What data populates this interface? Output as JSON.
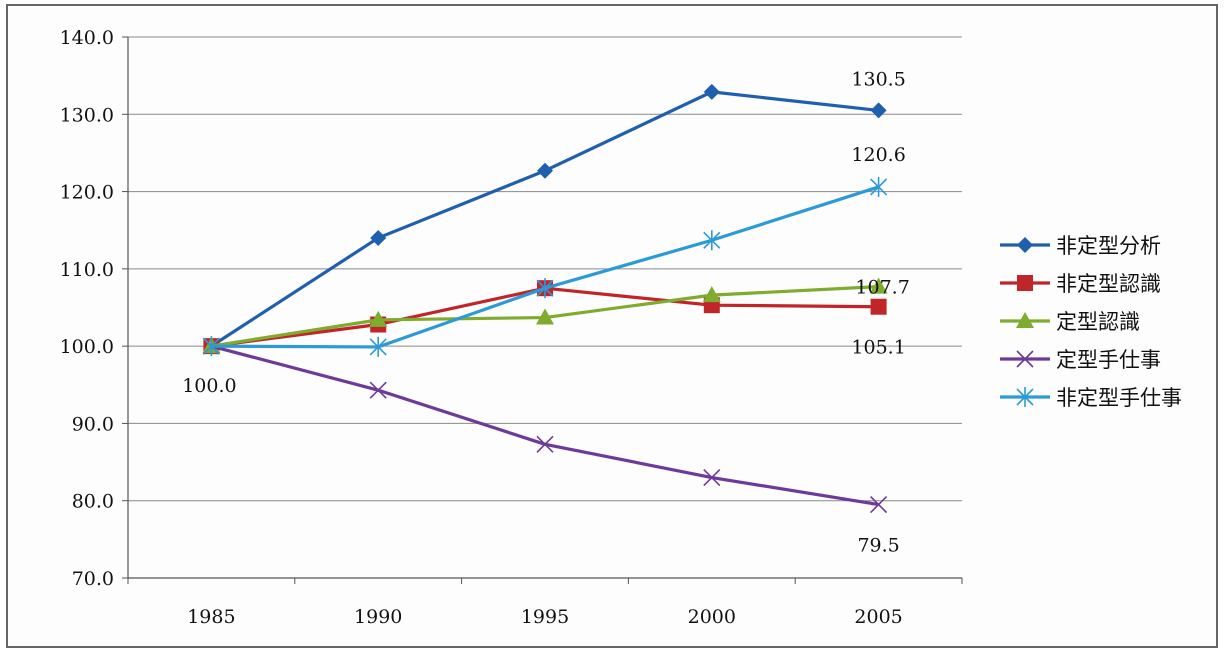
{
  "chart_data": {
    "type": "line",
    "title": "",
    "xlabel": "",
    "ylabel": "",
    "categories": [
      "1985",
      "1990",
      "1995",
      "2000",
      "2005"
    ],
    "ylim": [
      70,
      140
    ],
    "y_ticks": [
      "70.0",
      "80.0",
      "90.0",
      "100.0",
      "110.0",
      "120.0",
      "130.0",
      "140.0"
    ],
    "grid": "horizontal",
    "legend_position": "right",
    "series": [
      {
        "name": "非定型分析",
        "values": [
          100.0,
          114.0,
          122.7,
          132.9,
          130.5
        ],
        "color": "#1f5fae",
        "marker": "diamond"
      },
      {
        "name": "非定型認識",
        "values": [
          100.0,
          102.8,
          107.5,
          105.3,
          105.1
        ],
        "color": "#c0252a",
        "marker": "square"
      },
      {
        "name": "定型認識",
        "values": [
          100.0,
          103.4,
          103.7,
          106.6,
          107.7
        ],
        "color": "#7fab2e",
        "marker": "triangle"
      },
      {
        "name": "定型手仕事",
        "values": [
          100.0,
          94.3,
          87.3,
          83.0,
          79.5
        ],
        "color": "#6e3a9a",
        "marker": "x"
      },
      {
        "name": "非定型手仕事",
        "values": [
          100.0,
          99.9,
          107.5,
          113.7,
          120.6
        ],
        "color": "#2c9ad6",
        "marker": "star"
      }
    ],
    "data_labels": [
      {
        "series": 0,
        "index": 4,
        "text": "130.5"
      },
      {
        "series": 4,
        "index": 4,
        "text": "120.6"
      },
      {
        "series": 2,
        "index": 4,
        "text": "107.7"
      },
      {
        "series": 1,
        "index": 4,
        "text": "105.1"
      },
      {
        "series": 3,
        "index": 4,
        "text": "79.5"
      },
      {
        "series": 0,
        "index": 0,
        "text": "100.0"
      }
    ]
  }
}
